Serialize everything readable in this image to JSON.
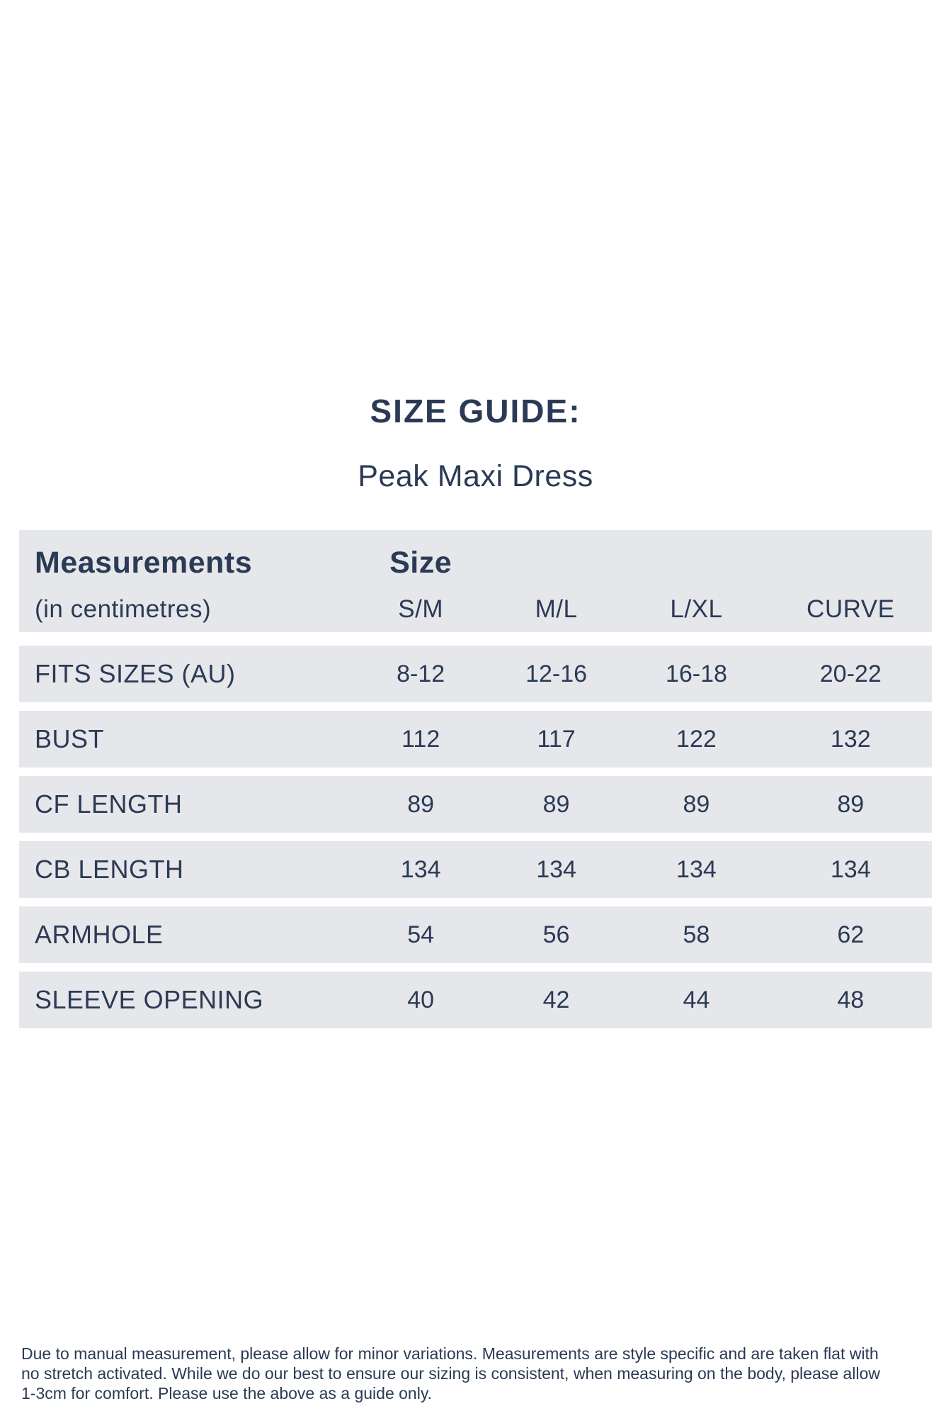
{
  "page": {
    "title": "SIZE GUIDE:",
    "subtitle": "Peak Maxi Dress"
  },
  "table": {
    "header": {
      "col1_title": "Measurements",
      "col1_subtitle": "(in centimetres)",
      "size_title": "Size",
      "size_columns": [
        "S/M",
        "M/L",
        "L/XL",
        "CURVE"
      ]
    },
    "rows": [
      {
        "label": "FITS SIZES (AU)",
        "values": [
          "8-12",
          "12-16",
          "16-18",
          "20-22"
        ]
      },
      {
        "label": "BUST",
        "values": [
          "112",
          "117",
          "122",
          "132"
        ]
      },
      {
        "label": "CF LENGTH",
        "values": [
          "89",
          "89",
          "89",
          "89"
        ]
      },
      {
        "label": "CB LENGTH",
        "values": [
          "134",
          "134",
          "134",
          "134"
        ]
      },
      {
        "label": "ARMHOLE",
        "values": [
          "54",
          "56",
          "58",
          "62"
        ]
      },
      {
        "label": "SLEEVE OPENING",
        "values": [
          "40",
          "42",
          "44",
          "48"
        ]
      }
    ]
  },
  "footer": {
    "lines": [
      "Due to manual measurement, please allow for minor variations. Measurements are style specific and are taken flat with",
      "no stretch activated. While we do our best to ensure our sizing is consistent, when measuring on the body, please allow",
      "1-3cm for comfort. Please use the above as a guide only."
    ]
  },
  "colors": {
    "text_navy": "#2b3a55",
    "band_gray": "#e6e7ea",
    "background": "#ffffff"
  }
}
